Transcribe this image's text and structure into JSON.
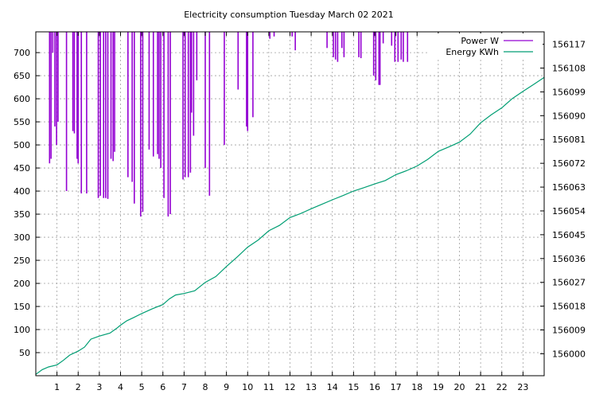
{
  "chart_data": {
    "type": "line",
    "title": "Electricity consumption Tuesday March 02 2021",
    "xlabel": "",
    "ylabel": "",
    "y2label": "",
    "xlim": [
      0,
      24
    ],
    "ylim": [
      0,
      745
    ],
    "y2lim": [
      155991.7,
      156121.7
    ],
    "x_ticks": [
      "1",
      "2",
      "3",
      "4",
      "5",
      "6",
      "7",
      "8",
      "9",
      "10",
      "11",
      "12",
      "13",
      "14",
      "15",
      "16",
      "17",
      "18",
      "19",
      "20",
      "21",
      "22",
      "23"
    ],
    "y_ticks": [
      50,
      100,
      150,
      200,
      250,
      300,
      350,
      400,
      450,
      500,
      550,
      600,
      650,
      700
    ],
    "y2_ticks": [
      "156000",
      "156009",
      "156018",
      "156027",
      "156036",
      "156045",
      "156054",
      "156063",
      "156072",
      "156081",
      "156090",
      "156099",
      "156108",
      "156117"
    ],
    "grid": true,
    "legend_position": "top-right",
    "series": [
      {
        "name": "Power W",
        "color": "#9400d3",
        "axis": "left",
        "style": "impulses",
        "x": [
          0.65,
          0.72,
          0.8,
          0.9,
          0.98,
          1.05,
          1.45,
          1.75,
          1.82,
          1.95,
          2.0,
          2.15,
          2.4,
          2.95,
          3.05,
          3.2,
          3.3,
          3.4,
          3.55,
          3.65,
          3.72,
          4.35,
          4.55,
          4.65,
          4.95,
          5.05,
          5.35,
          5.55,
          5.75,
          5.82,
          5.9,
          6.05,
          6.25,
          6.35,
          6.95,
          7.05,
          7.2,
          7.3,
          7.35,
          7.45,
          7.6,
          8.0,
          8.2,
          8.9,
          9.55,
          9.95,
          10.0,
          10.25,
          11.05,
          11.25,
          12.1,
          12.25,
          13.75,
          14.05,
          14.15,
          14.25,
          14.45,
          14.55,
          15.25,
          15.35,
          15.95,
          16.05,
          16.2,
          16.25,
          16.4,
          16.8,
          16.95,
          17.1,
          17.25,
          17.35,
          17.55
        ],
        "y": [
          460,
          470,
          700,
          540,
          500,
          550,
          400,
          530,
          525,
          470,
          460,
          395,
          395,
          385,
          390,
          385,
          385,
          383,
          470,
          465,
          485,
          430,
          420,
          373,
          345,
          355,
          490,
          475,
          480,
          470,
          450,
          385,
          345,
          350,
          425,
          430,
          430,
          440,
          570,
          520,
          640,
          450,
          390,
          500,
          620,
          540,
          530,
          560,
          730,
          735,
          735,
          705,
          710,
          690,
          685,
          680,
          710,
          690,
          690,
          688,
          650,
          640,
          630,
          630,
          720,
          715,
          680,
          680,
          685,
          680,
          680
        ]
      },
      {
        "name": "Energy KWh",
        "color": "#009e73",
        "axis": "right",
        "style": "line",
        "x": [
          0,
          0.3,
          0.6,
          1.0,
          1.3,
          1.6,
          2.0,
          2.3,
          2.6,
          3.0,
          3.5,
          3.8,
          4.0,
          4.3,
          4.6,
          5.0,
          5.5,
          6.0,
          6.3,
          6.6,
          7.0,
          7.5,
          8.0,
          8.5,
          9.0,
          9.5,
          10.0,
          10.5,
          11.0,
          11.5,
          12.0,
          12.5,
          13.0,
          13.5,
          14.0,
          14.5,
          15.0,
          15.5,
          16.0,
          16.5,
          17.0,
          17.5,
          18.0,
          18.5,
          19.0,
          19.5,
          20.0,
          20.5,
          21.0,
          21.5,
          22.0,
          22.5,
          23.0,
          23.5,
          24.0
        ],
        "y": [
          155992.2,
          155994.0,
          155995.0,
          155995.8,
          155997.5,
          155999.5,
          156001.0,
          156002.5,
          156005.5,
          156006.7,
          156007.8,
          156009.5,
          156010.8,
          156012.5,
          156013.6,
          156015.2,
          156017.0,
          156018.6,
          156020.7,
          156022.2,
          156022.8,
          156023.8,
          156027.0,
          156029.2,
          156033.0,
          156036.5,
          156040.3,
          156043.0,
          156046.5,
          156048.5,
          156051.5,
          156053.0,
          156054.8,
          156056.5,
          156058.2,
          156059.8,
          156061.5,
          156062.8,
          156064.2,
          156065.5,
          156067.7,
          156069.2,
          156071.0,
          156073.5,
          156076.5,
          156078.2,
          156080.0,
          156083.0,
          156087.3,
          156090.3,
          156093.0,
          156096.5,
          156099.2,
          156101.8,
          156104.5
        ]
      }
    ]
  }
}
